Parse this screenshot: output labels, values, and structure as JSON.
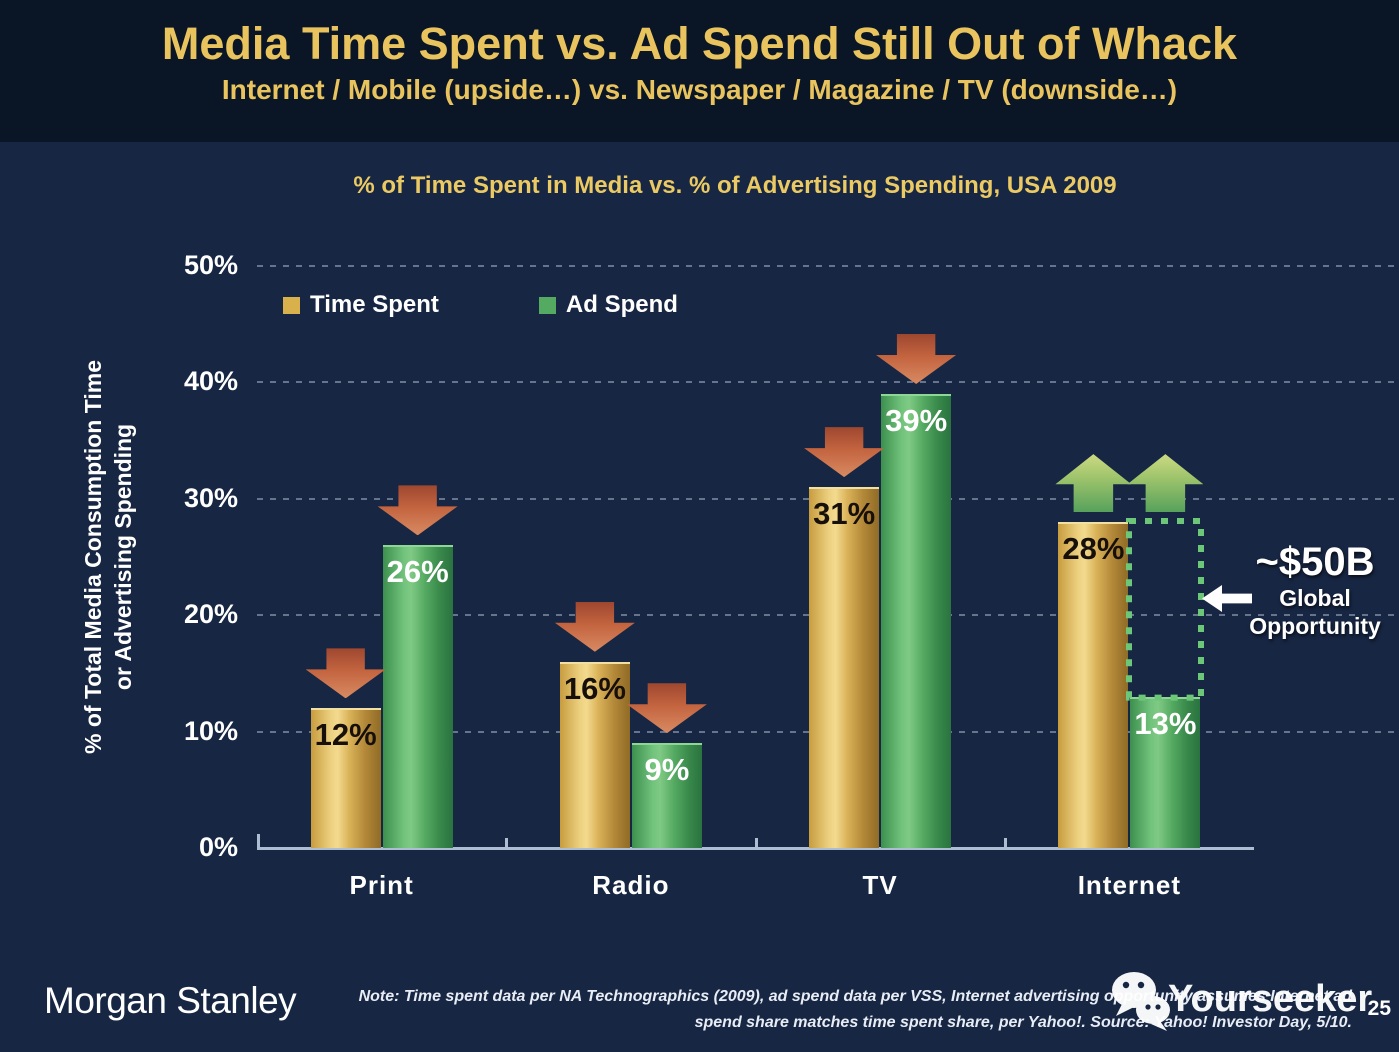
{
  "header": {
    "title": "Media Time Spent vs. Ad Spend Still Out of Whack",
    "subtitle": "Internet / Mobile (upside…) vs. Newspaper / Magazine / TV (downside…)"
  },
  "chart_data": {
    "type": "bar",
    "title": "% of Time Spent in Media vs. % of Advertising Spending, USA 2009",
    "categories": [
      "Print",
      "Radio",
      "TV",
      "Internet"
    ],
    "series": [
      {
        "name": "Time Spent",
        "color": "#d9b14c",
        "values": [
          12,
          16,
          31,
          28
        ]
      },
      {
        "name": "Ad Spend",
        "color": "#55aa62",
        "values": [
          26,
          9,
          39,
          13
        ]
      }
    ],
    "value_suffix": "%",
    "ylim": [
      0,
      50
    ],
    "ytick_step": 10,
    "yticks": [
      "0%",
      "10%",
      "20%",
      "30%",
      "40%",
      "50%"
    ],
    "ylabel_lines": [
      "% of Total Media Consumption Time",
      "or Advertising Spending"
    ],
    "grid": "horizontal-dashed",
    "legend_position": "top-left-inside",
    "annotations": {
      "arrows": [
        {
          "category": "Print",
          "series": "Time Spent",
          "direction": "down"
        },
        {
          "category": "Print",
          "series": "Ad Spend",
          "direction": "down"
        },
        {
          "category": "Radio",
          "series": "Time Spent",
          "direction": "down"
        },
        {
          "category": "Radio",
          "series": "Ad Spend",
          "direction": "down"
        },
        {
          "category": "TV",
          "series": "Time Spent",
          "direction": "down"
        },
        {
          "category": "TV",
          "series": "Ad Spend",
          "direction": "down"
        },
        {
          "category": "Internet",
          "series": "Time Spent",
          "direction": "up",
          "anchor_value": 28
        },
        {
          "category": "Internet",
          "series": "Ad Spend",
          "direction": "up",
          "anchor_value": 28
        }
      ],
      "opportunity_box": {
        "category": "Internet",
        "series": "Ad Spend",
        "value_from": 13,
        "value_to": 28,
        "color": "#6cc878"
      },
      "opportunity_label": {
        "headline": "~$50B",
        "line2": "Global",
        "line3": "Opportunity"
      }
    }
  },
  "footer": {
    "brand": "Morgan Stanley",
    "note_line1": "Note: Time spent data per NA Technographics (2009), ad spend data per VSS, Internet advertising opportunity assumes Internet ad",
    "note_line2": "spend share matches time spent share, per Yahoo!. Source: Yahoo! Investor Day, 5/10.",
    "page_number": "25",
    "watermark": "Yourseeker"
  },
  "colors": {
    "header_background": "#0a1626",
    "body_background": "#172643",
    "title_gold": "#e9c45e",
    "bar_gold": "#d9b14c",
    "bar_green": "#55aa62",
    "arrow_red": "#c3643f",
    "arrow_green": "#9fc46c",
    "opportunity_box_green": "#6cc878",
    "axis": "#aebdd2",
    "text_white": "#ffffff"
  }
}
